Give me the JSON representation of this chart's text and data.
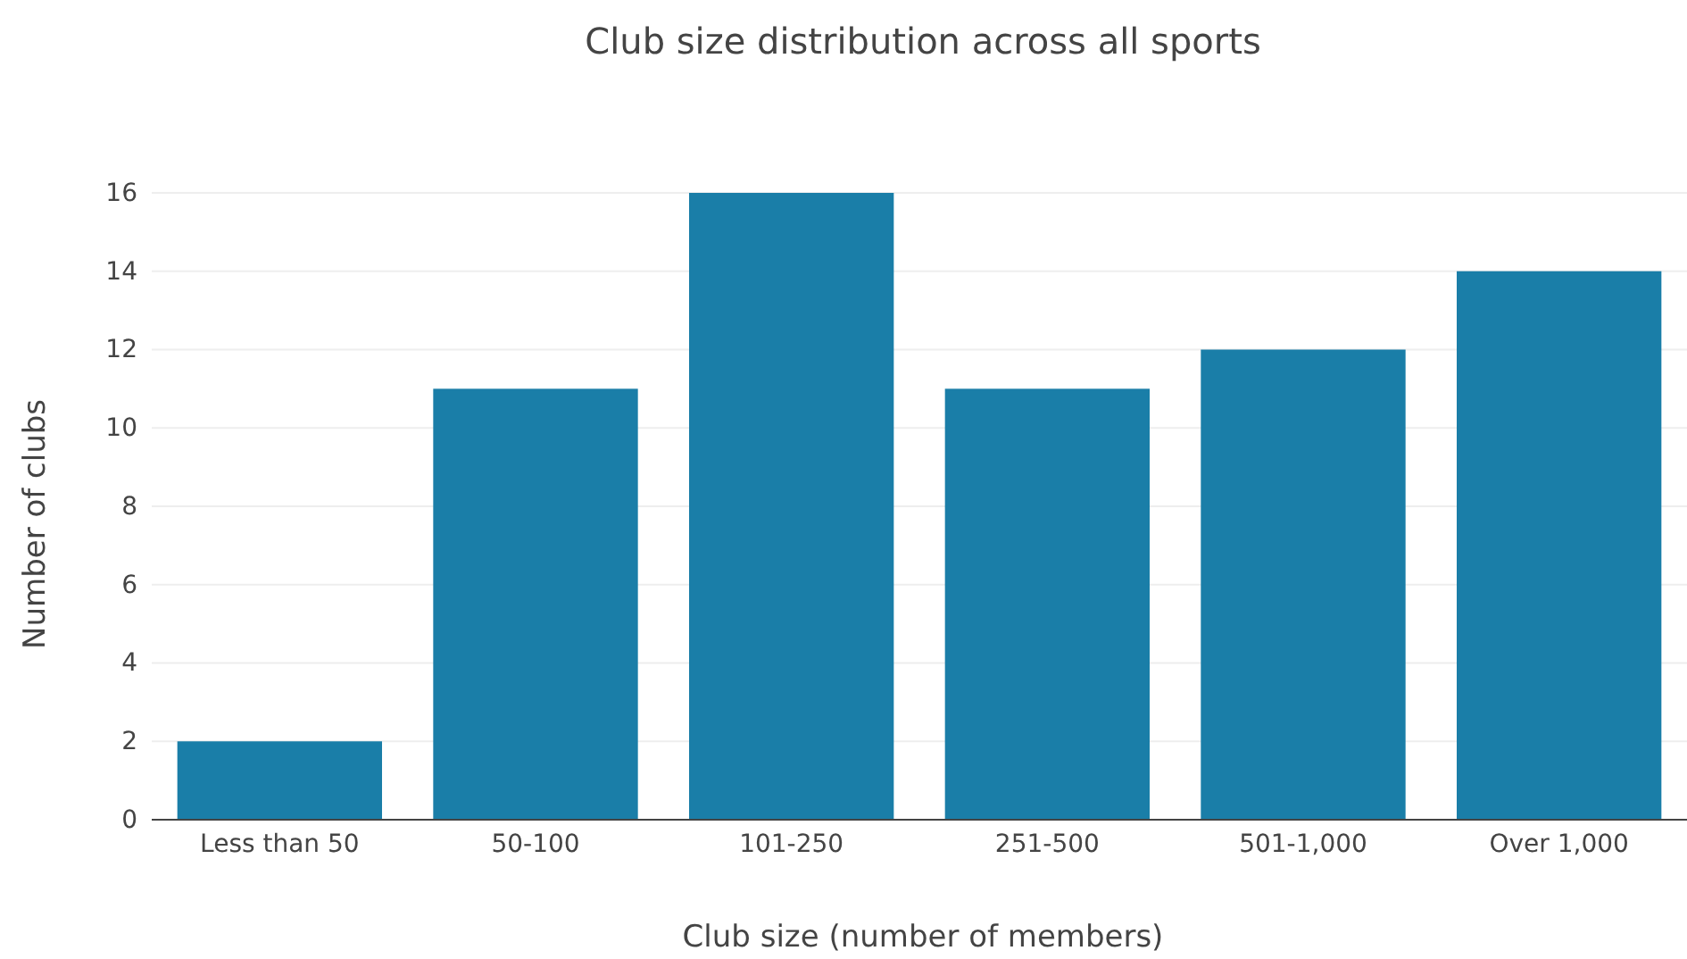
{
  "chart_data": {
    "type": "bar",
    "title": "Club size distribution across all sports",
    "xlabel": "Club size (number of members)",
    "ylabel": "Number of clubs",
    "categories": [
      "Less than 50",
      "50-100",
      "101-250",
      "251-500",
      "501-1,000",
      "Over 1,000"
    ],
    "values": [
      2,
      11,
      16,
      11,
      12,
      14
    ],
    "color": "#1a7ea8",
    "ylim": [
      0,
      16
    ],
    "yticks": [
      0,
      2,
      4,
      6,
      8,
      10,
      12,
      14,
      16
    ],
    "grid": "y"
  }
}
